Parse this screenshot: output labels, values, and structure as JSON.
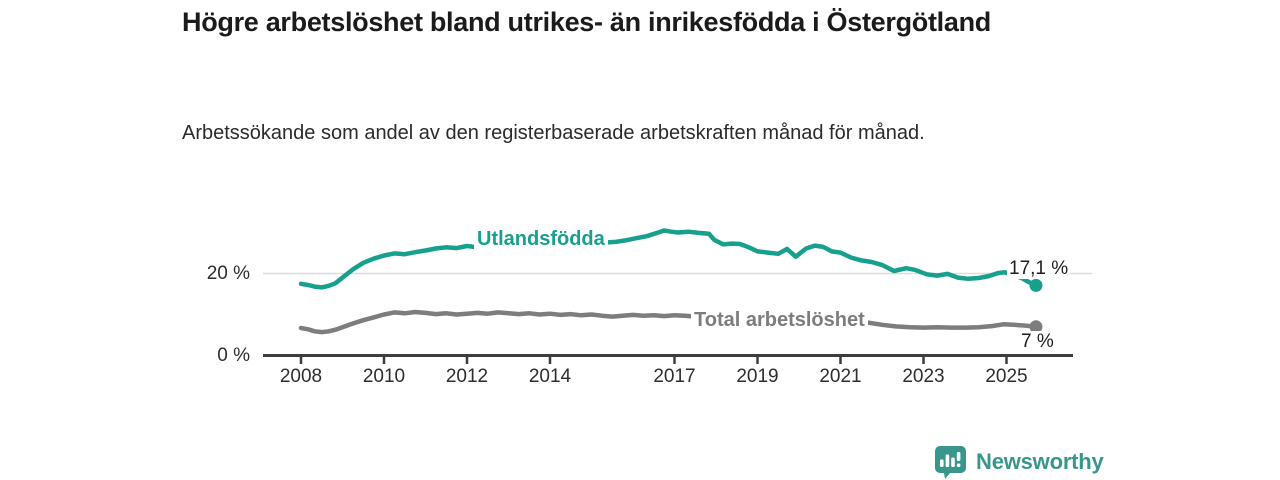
{
  "header": {
    "title": "Högre arbetslöshet bland utrikes- än inrikesfödda i Östergötland",
    "subtitle": "Arbetssökande som andel av den registerbaserade arbetskraften månad för månad."
  },
  "branding": {
    "logo_text": "Newsworthy",
    "logo_icon": "bar-chart-speech-bubble-icon",
    "brand_color": "#39968d"
  },
  "chart_data": {
    "type": "line",
    "title": "Högre arbetslöshet bland utrikes- än inrikesfödda i Östergötland",
    "subtitle": "Arbetssökande som andel av den registerbaserade arbetskraften månad för månad.",
    "unit": "%",
    "grid": "horizontal-20-only",
    "legend_position": "inline-on-lines",
    "x_range": [
      2008,
      2025.75
    ],
    "ylim": [
      0,
      33
    ],
    "x_ticks": [
      2008,
      2010,
      2012,
      2014,
      2017,
      2019,
      2021,
      2023,
      2025
    ],
    "y_ticks": [
      {
        "label": "0 %",
        "value": 0
      },
      {
        "label": "20 %",
        "value": 20
      }
    ],
    "colors": {
      "gridline": "#dcdcdc",
      "axis": "#3d3d3d"
    },
    "series": [
      {
        "name": "Utlandsfödda",
        "color": "#17a08e",
        "end_label": "17,1 %",
        "end_value": 17.1,
        "points": [
          [
            2008.0,
            17.5
          ],
          [
            2008.17,
            17.2
          ],
          [
            2008.33,
            16.8
          ],
          [
            2008.5,
            16.6
          ],
          [
            2008.67,
            17.0
          ],
          [
            2008.83,
            17.6
          ],
          [
            2009.0,
            19.0
          ],
          [
            2009.25,
            21.0
          ],
          [
            2009.5,
            22.6
          ],
          [
            2009.75,
            23.6
          ],
          [
            2010.0,
            24.4
          ],
          [
            2010.25,
            24.9
          ],
          [
            2010.5,
            24.7
          ],
          [
            2010.75,
            25.2
          ],
          [
            2011.0,
            25.6
          ],
          [
            2011.25,
            26.1
          ],
          [
            2011.5,
            26.4
          ],
          [
            2011.75,
            26.2
          ],
          [
            2012.0,
            26.7
          ],
          [
            2012.25,
            26.4
          ],
          [
            2012.5,
            26.2
          ],
          [
            2012.75,
            26.6
          ],
          [
            2013.0,
            27.0
          ],
          [
            2013.25,
            26.8
          ],
          [
            2013.5,
            27.2
          ],
          [
            2013.75,
            27.0
          ],
          [
            2014.0,
            27.4
          ],
          [
            2014.25,
            27.2
          ],
          [
            2014.5,
            27.6
          ],
          [
            2014.75,
            27.4
          ],
          [
            2015.0,
            27.7
          ],
          [
            2015.25,
            27.5
          ],
          [
            2015.58,
            27.7
          ],
          [
            2015.83,
            28.1
          ],
          [
            2016.08,
            28.6
          ],
          [
            2016.33,
            29.1
          ],
          [
            2016.58,
            29.9
          ],
          [
            2016.75,
            30.5
          ],
          [
            2016.92,
            30.2
          ],
          [
            2017.08,
            30.0
          ],
          [
            2017.33,
            30.2
          ],
          [
            2017.58,
            29.9
          ],
          [
            2017.83,
            29.7
          ],
          [
            2017.96,
            28.2
          ],
          [
            2018.17,
            27.1
          ],
          [
            2018.38,
            27.3
          ],
          [
            2018.58,
            27.2
          ],
          [
            2018.79,
            26.4
          ],
          [
            2019.0,
            25.4
          ],
          [
            2019.25,
            25.1
          ],
          [
            2019.5,
            24.8
          ],
          [
            2019.71,
            26.0
          ],
          [
            2019.92,
            24.1
          ],
          [
            2020.17,
            26.1
          ],
          [
            2020.38,
            26.8
          ],
          [
            2020.58,
            26.5
          ],
          [
            2020.79,
            25.4
          ],
          [
            2021.0,
            25.1
          ],
          [
            2021.25,
            23.9
          ],
          [
            2021.5,
            23.2
          ],
          [
            2021.75,
            22.8
          ],
          [
            2022.0,
            22.1
          ],
          [
            2022.29,
            20.6
          ],
          [
            2022.58,
            21.3
          ],
          [
            2022.79,
            20.9
          ],
          [
            2023.08,
            19.8
          ],
          [
            2023.33,
            19.5
          ],
          [
            2023.58,
            19.9
          ],
          [
            2023.83,
            19.0
          ],
          [
            2024.08,
            18.7
          ],
          [
            2024.33,
            18.9
          ],
          [
            2024.58,
            19.4
          ],
          [
            2024.79,
            20.1
          ],
          [
            2024.96,
            20.3
          ],
          [
            2025.17,
            19.6
          ],
          [
            2025.38,
            18.8
          ],
          [
            2025.54,
            17.9
          ],
          [
            2025.71,
            17.1
          ]
        ]
      },
      {
        "name": "Total arbetslöshet",
        "color": "#7d7d7d",
        "end_label": "7 %",
        "end_value": 7,
        "points": [
          [
            2008.0,
            6.7
          ],
          [
            2008.17,
            6.4
          ],
          [
            2008.33,
            5.9
          ],
          [
            2008.5,
            5.7
          ],
          [
            2008.67,
            5.9
          ],
          [
            2008.83,
            6.3
          ],
          [
            2009.0,
            6.9
          ],
          [
            2009.25,
            7.8
          ],
          [
            2009.5,
            8.6
          ],
          [
            2009.75,
            9.3
          ],
          [
            2010.0,
            10.0
          ],
          [
            2010.25,
            10.5
          ],
          [
            2010.5,
            10.3
          ],
          [
            2010.75,
            10.6
          ],
          [
            2011.0,
            10.4
          ],
          [
            2011.25,
            10.1
          ],
          [
            2011.5,
            10.3
          ],
          [
            2011.75,
            10.0
          ],
          [
            2012.0,
            10.2
          ],
          [
            2012.25,
            10.4
          ],
          [
            2012.5,
            10.2
          ],
          [
            2012.75,
            10.5
          ],
          [
            2013.0,
            10.3
          ],
          [
            2013.25,
            10.1
          ],
          [
            2013.5,
            10.3
          ],
          [
            2013.75,
            10.0
          ],
          [
            2014.0,
            10.2
          ],
          [
            2014.25,
            9.9
          ],
          [
            2014.5,
            10.1
          ],
          [
            2014.75,
            9.8
          ],
          [
            2015.0,
            10.0
          ],
          [
            2015.25,
            9.7
          ],
          [
            2015.5,
            9.5
          ],
          [
            2015.75,
            9.7
          ],
          [
            2016.0,
            9.9
          ],
          [
            2016.25,
            9.7
          ],
          [
            2016.5,
            9.8
          ],
          [
            2016.75,
            9.6
          ],
          [
            2017.0,
            9.8
          ],
          [
            2017.25,
            9.7
          ],
          [
            2017.5,
            9.5
          ],
          [
            2018.0,
            9.2
          ],
          [
            2018.5,
            8.9
          ],
          [
            2019.0,
            8.5
          ],
          [
            2019.5,
            8.3
          ],
          [
            2020.0,
            8.6
          ],
          [
            2020.33,
            9.6
          ],
          [
            2020.67,
            9.4
          ],
          [
            2021.0,
            9.0
          ],
          [
            2021.5,
            8.3
          ],
          [
            2022.0,
            7.5
          ],
          [
            2022.33,
            7.1
          ],
          [
            2022.67,
            6.9
          ],
          [
            2023.0,
            6.8
          ],
          [
            2023.33,
            6.9
          ],
          [
            2023.67,
            6.8
          ],
          [
            2024.0,
            6.8
          ],
          [
            2024.33,
            6.9
          ],
          [
            2024.67,
            7.2
          ],
          [
            2024.92,
            7.6
          ],
          [
            2025.17,
            7.5
          ],
          [
            2025.46,
            7.3
          ],
          [
            2025.71,
            7.0
          ]
        ]
      }
    ]
  }
}
